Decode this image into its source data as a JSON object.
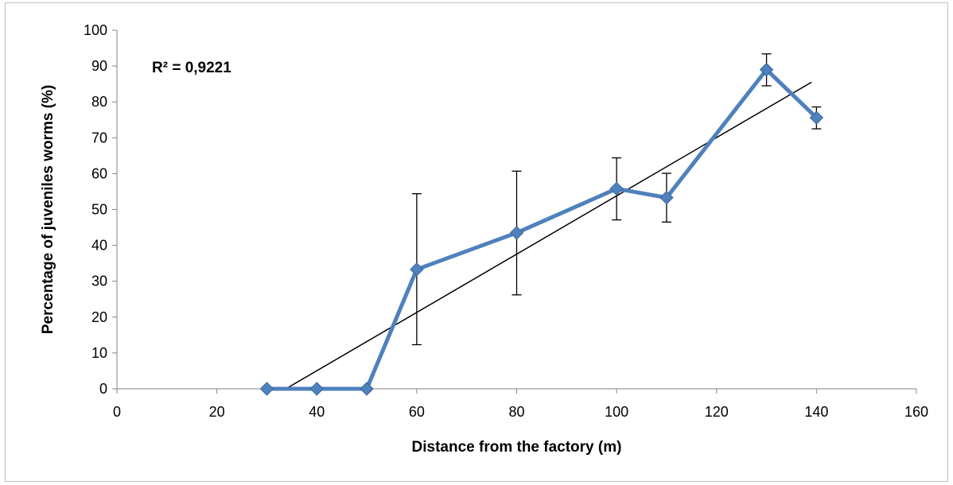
{
  "chart_data": {
    "type": "line",
    "title": "",
    "xlabel": "Distance from the factory (m)",
    "ylabel": "Percentage of juveniles worms (%)",
    "xlim": [
      0,
      160
    ],
    "ylim": [
      0,
      100
    ],
    "xticks": [
      0,
      20,
      40,
      60,
      80,
      100,
      120,
      140,
      160
    ],
    "yticks": [
      0,
      10,
      20,
      30,
      40,
      50,
      60,
      70,
      80,
      90,
      100
    ],
    "grid": false,
    "legend": "none",
    "series": [
      {
        "x": [
          30,
          40,
          50,
          60,
          80,
          100,
          110,
          130,
          140
        ],
        "y": [
          0,
          0,
          0,
          33.3,
          43.5,
          55.8,
          53.3,
          89,
          75.6
        ],
        "err_low": [
          0,
          0,
          0,
          12.3,
          26.2,
          47.1,
          46.5,
          84.5,
          72.5
        ],
        "err_high": [
          0,
          0,
          0,
          54.4,
          60.7,
          64.4,
          60.1,
          93.4,
          78.6
        ],
        "color": "#4f81bd"
      }
    ],
    "trendline": {
      "x": [
        33.8,
        139
      ],
      "y": [
        0,
        85.5
      ],
      "color": "#000000"
    },
    "annotations": [
      {
        "text": "R² = 0,9221"
      }
    ]
  }
}
